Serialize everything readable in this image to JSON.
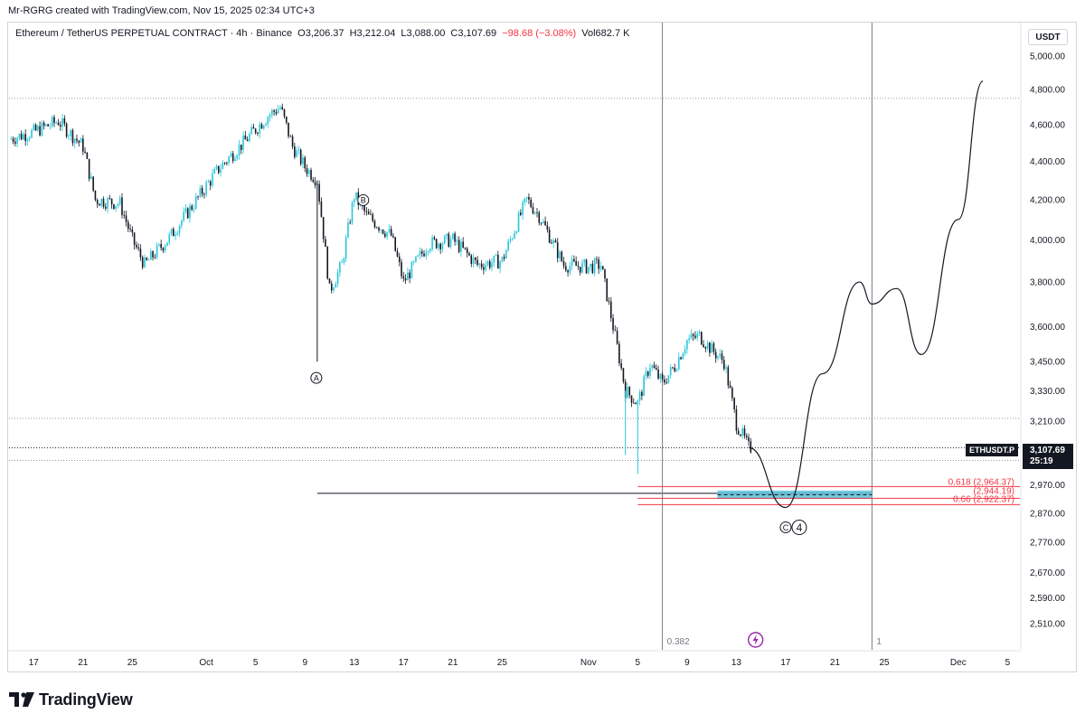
{
  "header": {
    "credit": "Mr-RGRG created with TradingView.com, Nov 15, 2025 02:34 UTC+3"
  },
  "legend": {
    "symbol": "Ethereum / TetherUS PERPETUAL CONTRACT · 4h · Binance",
    "open": "O3,206.37",
    "high": "H3,212.04",
    "low": "L3,088.00",
    "close": "C3,107.69",
    "change": "−98.68 (−3.08%)",
    "volume": "Vol682.7 K"
  },
  "price_scale": {
    "unit": "USDT",
    "ticks": [
      "5,000.00",
      "4,800.00",
      "4,600.00",
      "4,400.00",
      "4,200.00",
      "4,000.00",
      "3,800.00",
      "3,600.00",
      "3,450.00",
      "3,330.00",
      "3,210.00",
      "2,970.00",
      "2,870.00",
      "2,770.00",
      "2,670.00",
      "2,590.00",
      "2,510.00"
    ],
    "last_price": "3,107.69",
    "countdown": "25:19",
    "symbol_tag": "ETHUSDT.P"
  },
  "time_scale": {
    "ticks": [
      "17",
      "21",
      "25",
      "Oct",
      "5",
      "9",
      "13",
      "17",
      "21",
      "25",
      "Nov",
      "5",
      "9",
      "13",
      "17",
      "21",
      "25",
      "Dec",
      "5"
    ]
  },
  "annotations": {
    "wave_a": "A",
    "wave_b": "B",
    "wave_c": "C",
    "wave_4": "4",
    "fib_0382": "0.382",
    "fib_1": "1",
    "fib_0618": "0.618 (2,964.37)",
    "fib_066": "0.66 (2,922.37)",
    "fib_mid": "(2,944.19)"
  },
  "branding": {
    "logo_text": "TradingView"
  },
  "colors": {
    "up": "#26c6da",
    "down": "#131722",
    "fib_line": "#f23645",
    "zone": "#5bc0d8"
  },
  "chart_data": {
    "type": "candlestick",
    "symbol": "ETHUSDT.P",
    "interval": "4h",
    "last_close": 3107.69,
    "y_scale": "log",
    "ylim": [
      2450,
      5100
    ],
    "x_ticks": [
      "17",
      "21",
      "25",
      "Oct",
      "5",
      "9",
      "13",
      "17",
      "21",
      "25",
      "Nov",
      "5",
      "9",
      "13",
      "17",
      "21",
      "25",
      "Dec",
      "5"
    ],
    "price_path": [
      [
        "Sep 15",
        4520
      ],
      [
        "Sep 17",
        4560
      ],
      [
        "Sep 19",
        4620
      ],
      [
        "Sep 21",
        4480
      ],
      [
        "Sep 22",
        4200
      ],
      [
        "Sep 24",
        4180
      ],
      [
        "Sep 25",
        4000
      ],
      [
        "Sep 26",
        3880
      ],
      [
        "Sep 28",
        4010
      ],
      [
        "Sep 30",
        4180
      ],
      [
        "Oct 2",
        4360
      ],
      [
        "Oct 4",
        4500
      ],
      [
        "Oct 6",
        4650
      ],
      [
        "Oct 7",
        4700
      ],
      [
        "Oct 8",
        4480
      ],
      [
        "Oct 9",
        4370
      ],
      [
        "Oct 10",
        4300
      ],
      [
        "Oct 11",
        3760
      ],
      [
        "Oct 12",
        3880
      ],
      [
        "Oct 13",
        4220
      ],
      [
        "Oct 14",
        4120
      ],
      [
        "Oct 16",
        4020
      ],
      [
        "Oct 17",
        3800
      ],
      [
        "Oct 19",
        3980
      ],
      [
        "Oct 21",
        4000
      ],
      [
        "Oct 23",
        3880
      ],
      [
        "Oct 25",
        3900
      ],
      [
        "Oct 27",
        4200
      ],
      [
        "Oct 28",
        4120
      ],
      [
        "Oct 30",
        3880
      ],
      [
        "Nov 1",
        3870
      ],
      [
        "Nov 2",
        3880
      ],
      [
        "Nov 3",
        3600
      ],
      [
        "Nov 4",
        3330
      ],
      [
        "Nov 5",
        3280
      ],
      [
        "Nov 6",
        3440
      ],
      [
        "Nov 7",
        3360
      ],
      [
        "Nov 8",
        3430
      ],
      [
        "Nov 9",
        3540
      ],
      [
        "Nov 10",
        3560
      ],
      [
        "Nov 11",
        3500
      ],
      [
        "Nov 12",
        3450
      ],
      [
        "Nov 13",
        3200
      ],
      [
        "Nov 14",
        3107.69
      ]
    ],
    "wicks": [
      [
        "Oct 10",
        3450
      ],
      [
        "Nov 4",
        3080
      ],
      [
        "Nov 5",
        3010
      ]
    ],
    "projection": [
      [
        "Nov 14",
        3107.69
      ],
      [
        "Nov 17",
        2890
      ],
      [
        "Nov 20",
        3400
      ],
      [
        "Nov 23",
        3800
      ],
      [
        "Nov 24",
        3700
      ],
      [
        "Nov 26",
        3770
      ],
      [
        "Nov 28",
        3480
      ],
      [
        "Dec 1",
        4100
      ],
      [
        "Dec 3",
        4850
      ]
    ],
    "fib_levels": [
      {
        "level": 0.618,
        "price": 2964.37
      },
      {
        "level": 0.66,
        "price": 2922.37
      }
    ],
    "horizontal_levels": [
      4750,
      3220,
      3107.69,
      3060,
      2940
    ],
    "vertical_lines": [
      "Nov 7",
      "Nov 24"
    ],
    "zone": {
      "from": "Nov 10",
      "to": "Nov 24",
      "low": 2920,
      "high": 2950
    }
  }
}
